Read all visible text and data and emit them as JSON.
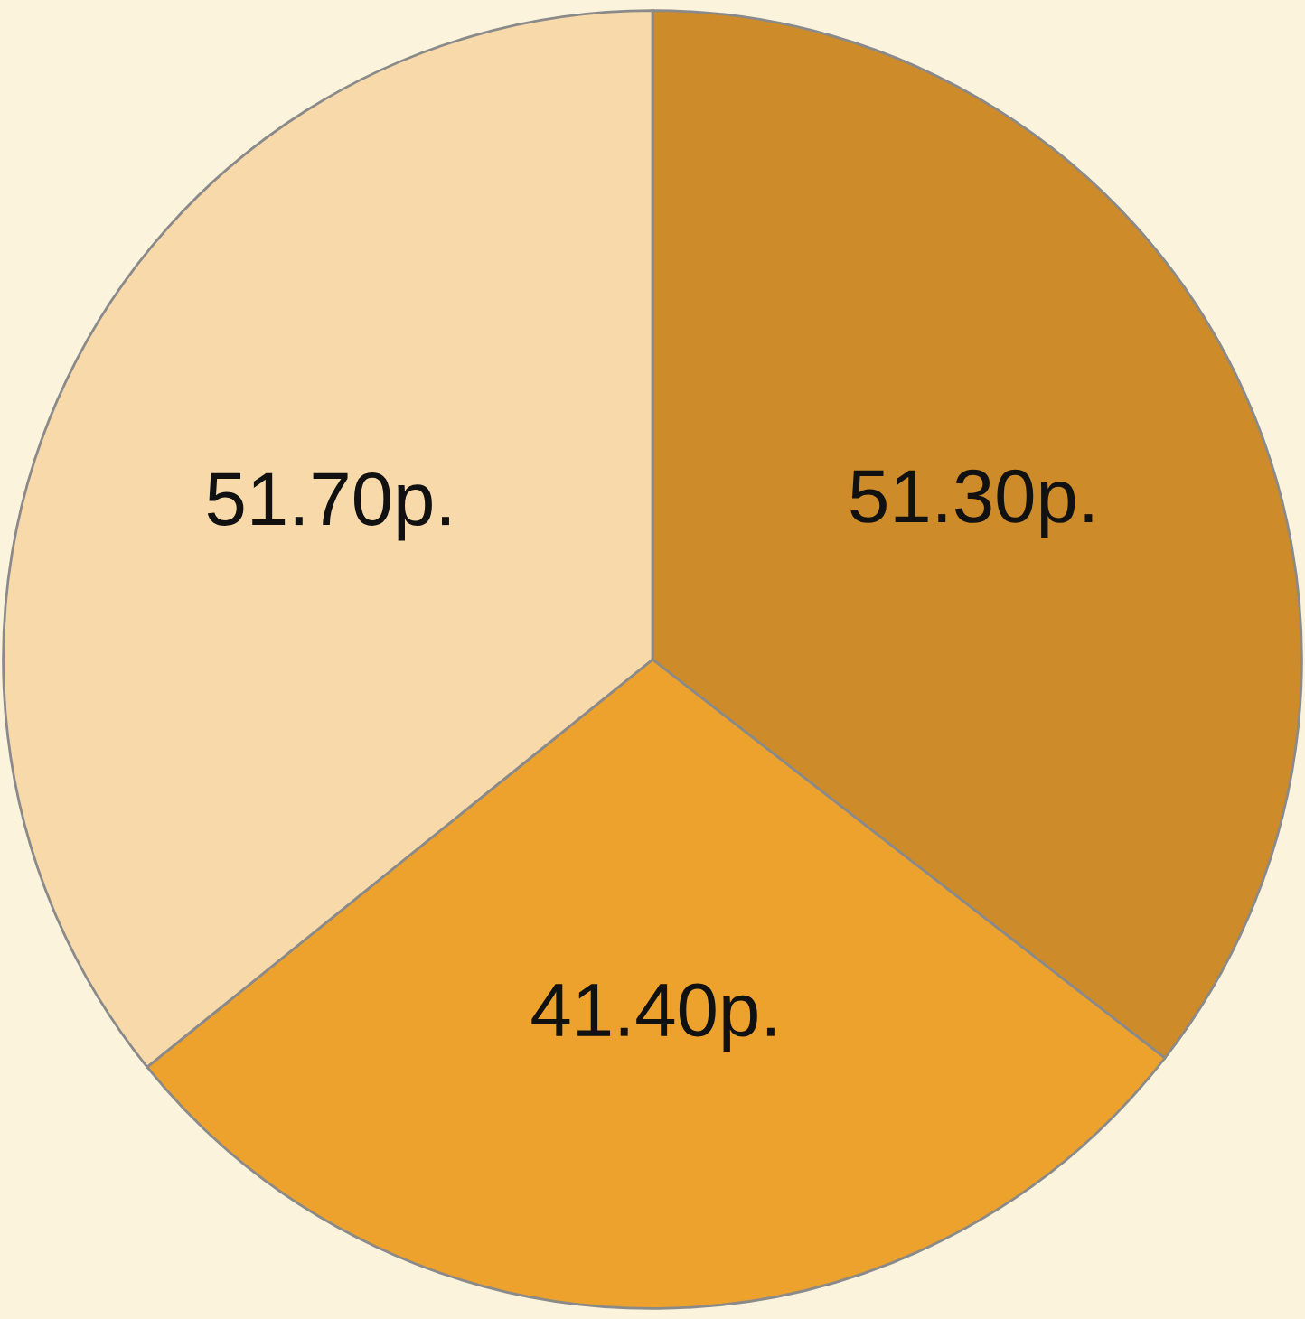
{
  "chart_data": {
    "type": "pie",
    "categories": [
      null,
      null,
      null
    ],
    "values": [
      51.3,
      41.4,
      51.7
    ],
    "value_labels": [
      "51.30p.",
      "41.40p.",
      "51.70p."
    ],
    "colors": [
      "#cd8b2a",
      "#eea22e",
      "#f7d9aa"
    ],
    "legend": false
  }
}
